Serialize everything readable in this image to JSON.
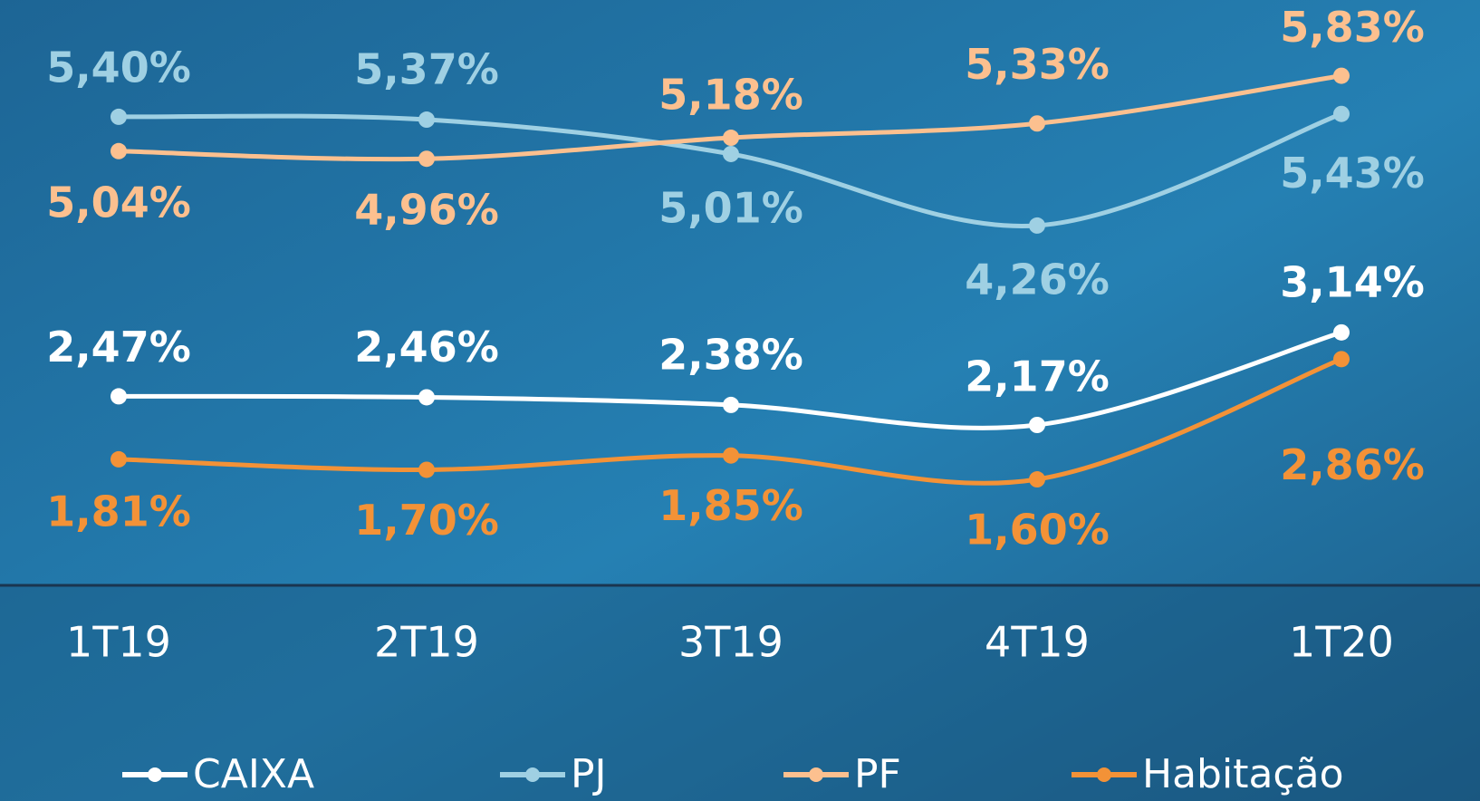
{
  "chart_data": {
    "type": "line",
    "categories": [
      "1T19",
      "2T19",
      "3T19",
      "4T19",
      "1T20"
    ],
    "series": [
      {
        "name": "CAIXA",
        "color": "#ffffff",
        "values": [
          2.47,
          2.46,
          2.38,
          2.17,
          3.14
        ],
        "value_labels": [
          "2,47%",
          "2,46%",
          "2,38%",
          "2,17%",
          "3,14%"
        ]
      },
      {
        "name": "PJ",
        "color": "#9fd0e3",
        "values": [
          5.4,
          5.37,
          5.01,
          4.26,
          5.43
        ],
        "value_labels": [
          "5,40%",
          "5,37%",
          "5,01%",
          "4,26%",
          "5,43%"
        ]
      },
      {
        "name": "PF",
        "color": "#fcc08f",
        "values": [
          5.04,
          4.96,
          5.18,
          5.33,
          5.83
        ],
        "value_labels": [
          "5,04%",
          "4,96%",
          "5,18%",
          "5,33%",
          "5,83%"
        ]
      },
      {
        "name": "Habitação",
        "color": "#f39237",
        "values": [
          1.81,
          1.7,
          1.85,
          1.6,
          2.86
        ],
        "value_labels": [
          "1,81%",
          "1,70%",
          "1,85%",
          "1,60%",
          "2,86%"
        ]
      }
    ]
  }
}
